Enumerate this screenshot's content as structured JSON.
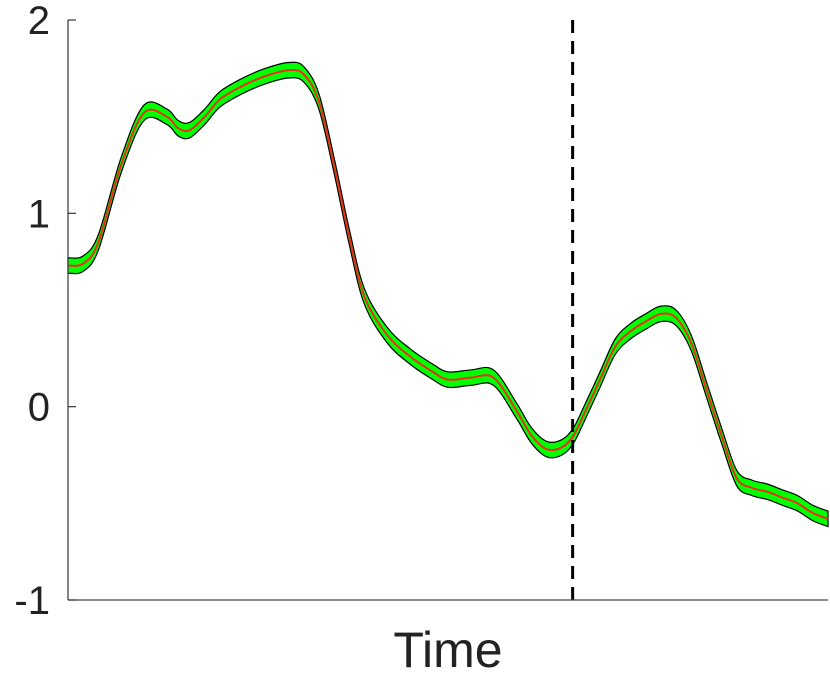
{
  "chart_data": {
    "type": "line",
    "title": "",
    "xlabel": "Time",
    "ylabel": "",
    "ylim": [
      -1,
      2
    ],
    "xlim": [
      0,
      1
    ],
    "yticks": [
      -1,
      0,
      1,
      2
    ],
    "ytick_labels": [
      "-1",
      "0",
      "1",
      "2"
    ],
    "grid": false,
    "legend": "none",
    "colors": {
      "line": "#e8301a",
      "band": "#00ff00",
      "band_edge": "#000000",
      "marker": "#000000",
      "axis": "#444444"
    },
    "series": [
      {
        "x": [
          0.0,
          0.02,
          0.04,
          0.07,
          0.1,
          0.13,
          0.145,
          0.16,
          0.18,
          0.2,
          0.23,
          0.26,
          0.29,
          0.31,
          0.33,
          0.35,
          0.37,
          0.39,
          0.42,
          0.45,
          0.48,
          0.5,
          0.53,
          0.56,
          0.59,
          0.61,
          0.63,
          0.65,
          0.665,
          0.68,
          0.7,
          0.72,
          0.74,
          0.76,
          0.78,
          0.8,
          0.82,
          0.84,
          0.86,
          0.88,
          0.9,
          0.92,
          0.94,
          0.96,
          0.98,
          1.0
        ],
        "y": [
          0.73,
          0.74,
          0.85,
          1.25,
          1.52,
          1.5,
          1.44,
          1.43,
          1.5,
          1.59,
          1.66,
          1.71,
          1.74,
          1.72,
          1.58,
          1.25,
          0.88,
          0.57,
          0.37,
          0.26,
          0.18,
          0.14,
          0.15,
          0.15,
          -0.02,
          -0.15,
          -0.22,
          -0.21,
          -0.15,
          -0.03,
          0.14,
          0.31,
          0.39,
          0.44,
          0.48,
          0.46,
          0.33,
          0.09,
          -0.15,
          -0.37,
          -0.42,
          -0.44,
          -0.47,
          -0.5,
          -0.55,
          -0.58
        ],
        "band_halfwidth": 0.04
      }
    ],
    "vertical_line_x": 0.664
  }
}
